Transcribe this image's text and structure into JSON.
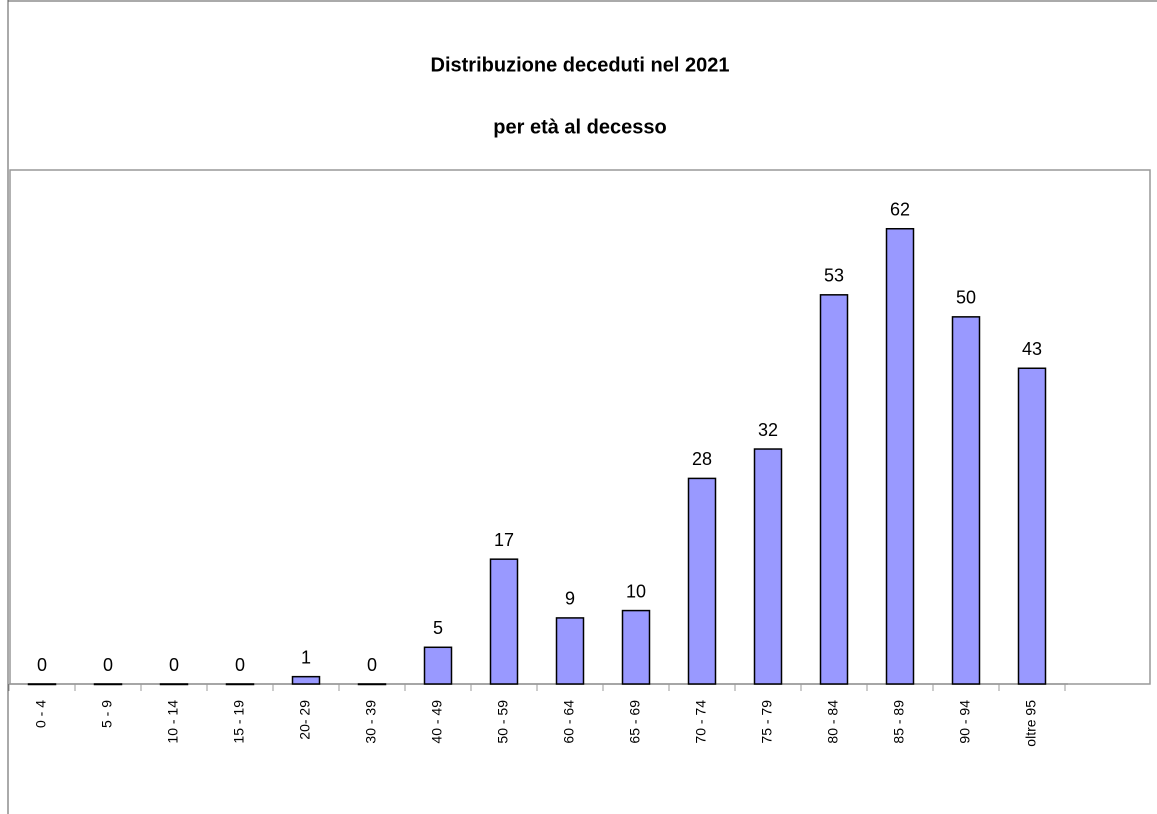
{
  "chart_data": {
    "type": "bar",
    "title": "Distribuzione deceduti nel 2021",
    "subtitle": "per età al decesso",
    "categories": [
      "0 - 4",
      "5 - 9",
      "10 - 14",
      "15 - 19",
      "20- 29",
      "30 - 39",
      "40 - 49",
      "50 - 59",
      "60 - 64",
      "65 - 69",
      "70 - 74",
      "75 - 79",
      "80 - 84",
      "85 - 89",
      "90 - 94",
      "oltre 95"
    ],
    "values": [
      0,
      0,
      0,
      0,
      1,
      0,
      5,
      17,
      9,
      10,
      28,
      32,
      53,
      62,
      50,
      43
    ],
    "color": "#9999ff",
    "ylim": [
      0,
      70
    ]
  }
}
